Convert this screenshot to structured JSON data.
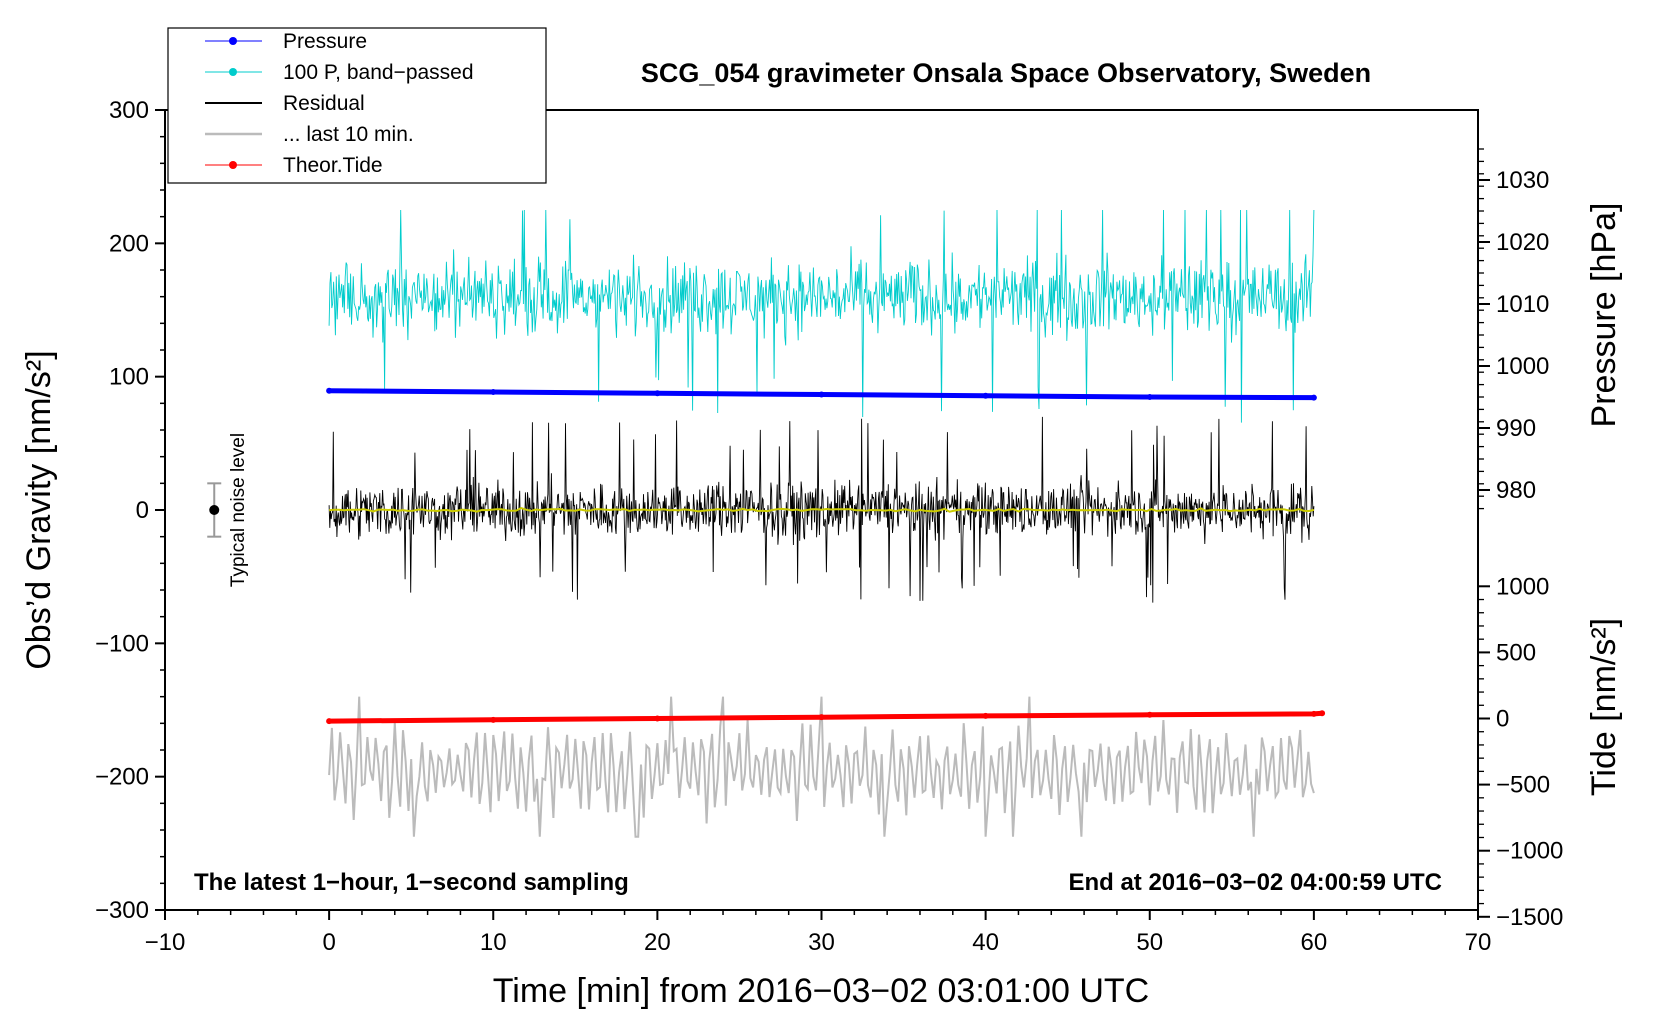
{
  "chart_data": {
    "type": "line",
    "title": "SCG_054 gravimeter Onsala Space Observatory, Sweden",
    "xlabel": "Time [min] from 2016−03−02 03:01:00 UTC",
    "ylabel_left": "Obs’d Gravity [nm/s²]",
    "ylabel_right_top": "Pressure [hPa]",
    "ylabel_right_bottom": "Tide [nm/s²]",
    "xlim": [
      -10,
      70
    ],
    "ylim_left": [
      -300,
      300
    ],
    "x_ticks": [
      "−10",
      "0",
      "10",
      "20",
      "30",
      "40",
      "50",
      "60",
      "70"
    ],
    "y_left_ticks": [
      "300",
      "200",
      "100",
      "0",
      "−100",
      "−200",
      "−300"
    ],
    "pressure_ticks": [
      "1030",
      "1020",
      "1010",
      "1000",
      "990",
      "980"
    ],
    "tide_ticks": [
      "1000",
      "500",
      "0",
      "−500",
      "−1000",
      "−1500"
    ],
    "legend": [
      {
        "label": "Pressure",
        "color": "#0000ff",
        "marker": true
      },
      {
        "label": "100 P, band−passed",
        "color": "#00cccc",
        "marker": true
      },
      {
        "label": "Residual",
        "color": "#000000",
        "marker": false
      },
      {
        "label": "... last 10 min.",
        "color": "#bbbbbb",
        "marker": false
      },
      {
        "label": "Theor.Tide",
        "color": "#ff0000",
        "marker": true
      }
    ],
    "note_left": "The latest 1−hour, 1−second sampling",
    "note_right": "End at 2016−03−02 04:00:59 UTC",
    "noise_label": "Typical noise level",
    "noise_level": {
      "x": -7,
      "y": 0,
      "err": 20
    },
    "series": [
      {
        "name": "Pressure",
        "unit": "hPa",
        "axis": "right-top",
        "color": "#0000ff",
        "x": [
          0,
          10,
          20,
          30,
          40,
          50,
          60
        ],
        "values": [
          996.0,
          995.8,
          995.6,
          995.4,
          995.2,
          995.0,
          994.9
        ]
      },
      {
        "name": "100 P, band-passed",
        "unit": "nm/s2",
        "axis": "left",
        "color": "#00cccc",
        "x": [
          0,
          60
        ],
        "center": 160,
        "amplitude": 40,
        "range": [
          45,
          225
        ]
      },
      {
        "name": "Residual",
        "unit": "nm/s2",
        "axis": "left",
        "color": "#000000",
        "x": [
          0,
          60
        ],
        "center": 0,
        "amplitude": 30,
        "range": [
          -83,
          75
        ]
      },
      {
        "name": "Smoothed residual",
        "unit": "nm/s2",
        "axis": "left",
        "color": "#cccc00",
        "x": [
          0,
          60
        ],
        "values_range": [
          -2,
          2
        ]
      },
      {
        "name": "... last 10 min.",
        "unit": "nm/s2",
        "axis": "left",
        "color": "#bbbbbb",
        "x": [
          0,
          60
        ],
        "center": -195,
        "amplitude": 25,
        "range": [
          -245,
          -120
        ]
      },
      {
        "name": "Theor.Tide",
        "unit": "nm/s2",
        "axis": "right-bottom",
        "color": "#ff0000",
        "x": [
          0,
          10,
          20,
          30,
          40,
          50,
          60,
          60.5
        ],
        "values": [
          -20,
          -10,
          0,
          10,
          20,
          28,
          35,
          40
        ]
      }
    ]
  }
}
